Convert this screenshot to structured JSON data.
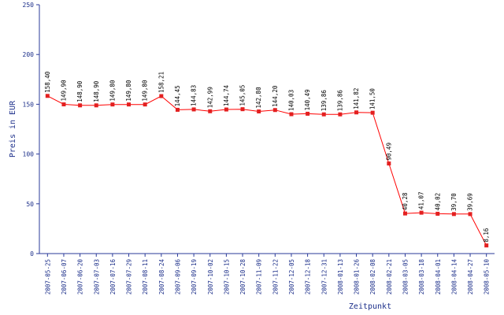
{
  "chart_data": {
    "type": "line",
    "xlabel": "Zeitpunkt",
    "ylabel": "Preis in EUR",
    "ylim": [
      0,
      250
    ],
    "yticks": [
      "0",
      "50",
      "100",
      "150",
      "200",
      "250"
    ],
    "grid": false,
    "x": [
      "2007-05-25",
      "2007-06-07",
      "2007-06-20",
      "2007-07-03",
      "2007-07-16",
      "2007-07-29",
      "2007-08-11",
      "2007-08-24",
      "2007-09-06",
      "2007-09-19",
      "2007-10-02",
      "2007-10-15",
      "2007-10-28",
      "2007-11-09",
      "2007-11-22",
      "2007-12-05",
      "2007-12-18",
      "2007-12-31",
      "2008-01-13",
      "2008-01-26",
      "2008-02-08",
      "2008-02-21",
      "2008-03-05",
      "2008-03-18",
      "2008-04-01",
      "2008-04-14",
      "2008-04-27",
      "2008-05-10"
    ],
    "values": [
      158.4,
      149.9,
      148.9,
      148.9,
      149.8,
      149.8,
      149.8,
      158.21,
      144.45,
      144.83,
      142.99,
      144.74,
      145.05,
      142.8,
      144.2,
      140.03,
      140.49,
      139.86,
      139.86,
      141.82,
      141.5,
      90.49,
      40.28,
      41.07,
      40.02,
      39.7,
      39.69,
      8.16
    ],
    "labels": [
      "158,40",
      "149,90",
      "148,90",
      "148,90",
      "149,80",
      "149,80",
      "149,80",
      "158,21",
      "144,45",
      "144,83",
      "142,99",
      "144,74",
      "145,05",
      "142,80",
      "144,20",
      "140,03",
      "140,49",
      "139,86",
      "139,86",
      "141,82",
      "141,50",
      "90,49",
      "40,28",
      "41,07",
      "40,02",
      "39,70",
      "39,69",
      "8,16"
    ],
    "colors": {
      "axis": "#2a3a9a",
      "line": "#ff0000",
      "marker": "#e32020",
      "tick_text": "#1c2f8a"
    }
  }
}
